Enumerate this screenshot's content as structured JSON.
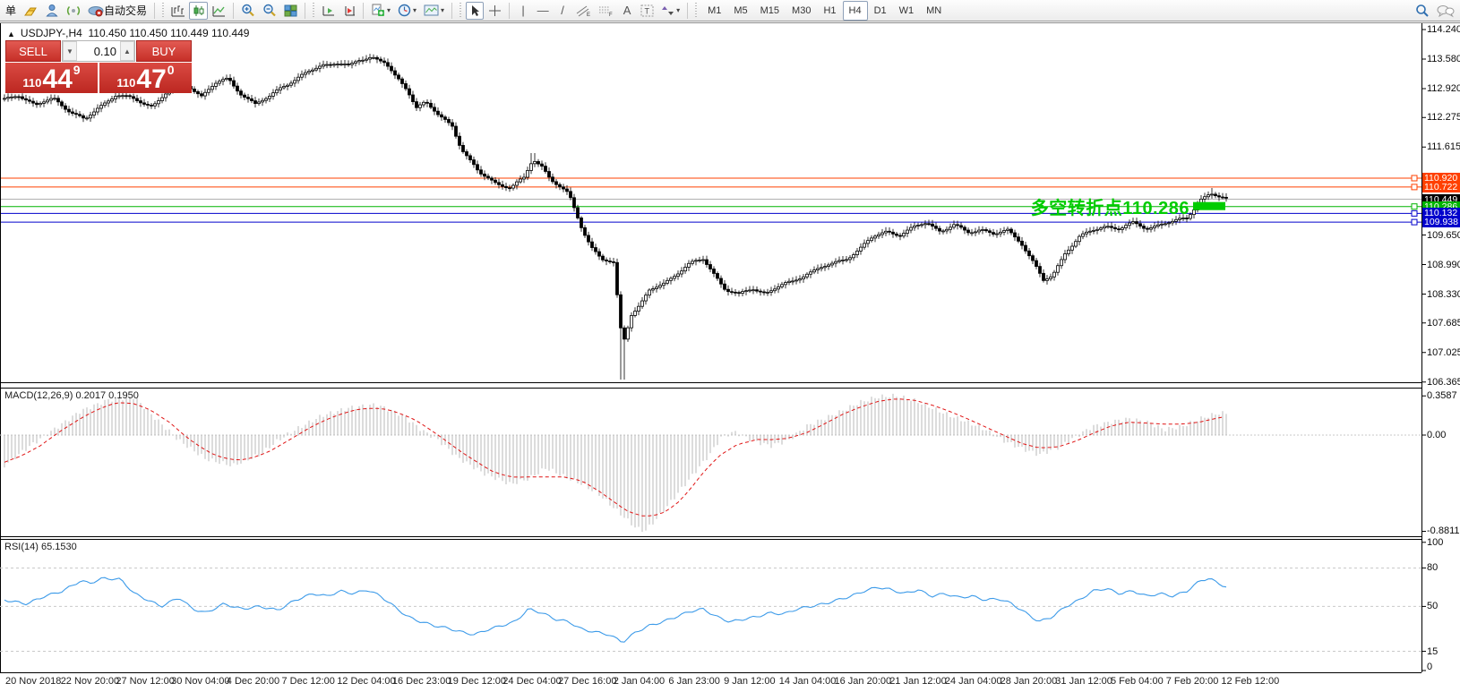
{
  "toolbar": {
    "new_order_label": "单",
    "autotrading_label": "自动交易",
    "timeframes": [
      "M1",
      "M5",
      "M15",
      "M30",
      "H1",
      "H4",
      "D1",
      "W1",
      "MN"
    ],
    "active_timeframe": "H4",
    "glyphs": {
      "vertical_line": "|",
      "horizontal_line": "—",
      "trendline": "/",
      "text": "A",
      "text_label": "T"
    }
  },
  "chart": {
    "header": {
      "collapse_arrow": "▲",
      "symbol_period": "USDJPY-,H4",
      "ohlc": "110.450 110.450 110.449 110.449"
    },
    "trade_panel": {
      "sell_label": "SELL",
      "buy_label": "BUY",
      "volume": "0.10",
      "sell_prefix": "110",
      "sell_big": "44",
      "sell_sup": "9",
      "buy_prefix": "110",
      "buy_big": "47",
      "buy_sup": "0",
      "spin_down": "▼",
      "spin_up": "▲"
    },
    "annotation": {
      "text": "多空转折点110.286",
      "color": "#00cc00"
    },
    "price_axis_ticks": [
      "114.240",
      "113.580",
      "112.920",
      "112.275",
      "111.615",
      "109.650",
      "108.990",
      "108.330",
      "107.685",
      "107.025",
      "106.365"
    ]
  },
  "chart_data": [
    {
      "type": "candlestick",
      "title": "USDJPY-,H4",
      "ylim": [
        106.365,
        114.24
      ],
      "price_anchors": [
        [
          5,
          112.66
        ],
        [
          20,
          112.8
        ],
        [
          40,
          112.54
        ],
        [
          60,
          112.7
        ],
        [
          80,
          112.4
        ],
        [
          95,
          112.2
        ],
        [
          110,
          112.5
        ],
        [
          130,
          112.8
        ],
        [
          150,
          112.66
        ],
        [
          170,
          112.54
        ],
        [
          190,
          112.9
        ],
        [
          210,
          113.0
        ],
        [
          225,
          112.76
        ],
        [
          240,
          113.02
        ],
        [
          255,
          113.14
        ],
        [
          270,
          112.8
        ],
        [
          285,
          112.56
        ],
        [
          300,
          112.72
        ],
        [
          315,
          113.0
        ],
        [
          330,
          113.1
        ],
        [
          345,
          113.3
        ],
        [
          360,
          113.46
        ],
        [
          375,
          113.5
        ],
        [
          390,
          113.4
        ],
        [
          400,
          113.56
        ],
        [
          415,
          113.64
        ],
        [
          430,
          113.5
        ],
        [
          440,
          113.2
        ],
        [
          455,
          112.9
        ],
        [
          465,
          112.52
        ],
        [
          475,
          112.62
        ],
        [
          490,
          112.3
        ],
        [
          505,
          112.1
        ],
        [
          515,
          111.6
        ],
        [
          525,
          111.3
        ],
        [
          535,
          111.02
        ],
        [
          545,
          110.92
        ],
        [
          555,
          110.8
        ],
        [
          570,
          110.72
        ],
        [
          585,
          110.9
        ],
        [
          595,
          111.34
        ],
        [
          605,
          111.2
        ],
        [
          615,
          110.9
        ],
        [
          625,
          110.72
        ],
        [
          635,
          110.54
        ],
        [
          650,
          109.8
        ],
        [
          660,
          109.4
        ],
        [
          672,
          109.1
        ],
        [
          685,
          109.0
        ],
        [
          695,
          107.2
        ],
        [
          705,
          107.9
        ],
        [
          715,
          108.1
        ],
        [
          725,
          108.4
        ],
        [
          740,
          108.54
        ],
        [
          755,
          108.8
        ],
        [
          770,
          109.0
        ],
        [
          785,
          109.1
        ],
        [
          800,
          108.72
        ],
        [
          810,
          108.44
        ],
        [
          825,
          108.3
        ],
        [
          840,
          108.46
        ],
        [
          855,
          108.36
        ],
        [
          870,
          108.5
        ],
        [
          885,
          108.6
        ],
        [
          900,
          108.8
        ],
        [
          915,
          108.9
        ],
        [
          930,
          109.0
        ],
        [
          945,
          109.14
        ],
        [
          960,
          109.34
        ],
        [
          975,
          109.6
        ],
        [
          990,
          109.74
        ],
        [
          1005,
          109.66
        ],
        [
          1020,
          109.8
        ],
        [
          1035,
          109.94
        ],
        [
          1050,
          109.74
        ],
        [
          1065,
          109.86
        ],
        [
          1080,
          109.7
        ],
        [
          1095,
          109.8
        ],
        [
          1110,
          109.66
        ],
        [
          1125,
          109.74
        ],
        [
          1140,
          109.5
        ],
        [
          1155,
          109.0
        ],
        [
          1165,
          108.62
        ],
        [
          1175,
          108.72
        ],
        [
          1190,
          109.3
        ],
        [
          1205,
          109.6
        ],
        [
          1220,
          109.74
        ],
        [
          1235,
          109.86
        ],
        [
          1250,
          109.8
        ],
        [
          1265,
          109.9
        ],
        [
          1280,
          109.8
        ],
        [
          1295,
          109.9
        ],
        [
          1310,
          109.94
        ],
        [
          1325,
          110.02
        ],
        [
          1340,
          110.46
        ],
        [
          1352,
          110.56
        ],
        [
          1362,
          110.48
        ],
        [
          1370,
          110.45
        ]
      ],
      "spikes": [
        {
          "x": 695,
          "low": 106.42
        },
        {
          "x": 595,
          "high": 111.48
        },
        {
          "x": 1352,
          "high": 110.7
        }
      ],
      "horizontal_lines": [
        {
          "price": 110.92,
          "label": "110.920",
          "color": "#ff4000",
          "label_bg": "#ff4000",
          "label_fg": "#ffffff"
        },
        {
          "price": 110.722,
          "label": "110.722",
          "color": "#ff4000",
          "label_bg": "#ff4000",
          "label_fg": "#ffffff"
        },
        {
          "price": 110.286,
          "label": "110.286",
          "color": "#00b400",
          "label_bg": "#00b400",
          "label_fg": "#ffffff"
        },
        {
          "price": 110.132,
          "label": "110.132",
          "color": "#0000cc",
          "label_bg": "#0000cc",
          "label_fg": "#ffffff"
        },
        {
          "price": 109.938,
          "label": "109.938",
          "color": "#0000cc",
          "label_bg": "#0000cc",
          "label_fg": "#ffffff"
        }
      ],
      "current_price": {
        "price": 110.449,
        "label": "110.449",
        "line_color": "#b0b0b0",
        "label_bg": "#000000",
        "label_fg": "#ffffff"
      },
      "green_box": {
        "x": 1332,
        "width": 36,
        "price": 110.286,
        "color": "#00cc00"
      }
    },
    {
      "type": "bar",
      "name": "MACD(12,26,9)",
      "values_label": "0.2017 0.1950",
      "ylim": [
        -0.8811,
        0.3587
      ],
      "axis_ticks": [
        "0.3587",
        "0.00",
        "-0.8811"
      ],
      "histogram_color": "#b8b8b8",
      "signal_color": "#e01515",
      "anchors": [
        [
          5,
          -0.28
        ],
        [
          30,
          -0.12
        ],
        [
          60,
          0.05
        ],
        [
          90,
          0.22
        ],
        [
          120,
          0.32
        ],
        [
          150,
          0.35
        ],
        [
          170,
          0.18
        ],
        [
          200,
          -0.05
        ],
        [
          230,
          -0.22
        ],
        [
          260,
          -0.28
        ],
        [
          290,
          -0.18
        ],
        [
          310,
          -0.05
        ],
        [
          330,
          0.05
        ],
        [
          360,
          0.18
        ],
        [
          390,
          0.25
        ],
        [
          420,
          0.28
        ],
        [
          450,
          0.18
        ],
        [
          470,
          0.05
        ],
        [
          490,
          -0.05
        ],
        [
          510,
          -0.2
        ],
        [
          540,
          -0.35
        ],
        [
          570,
          -0.45
        ],
        [
          590,
          -0.4
        ],
        [
          610,
          -0.3
        ],
        [
          630,
          -0.38
        ],
        [
          650,
          -0.45
        ],
        [
          670,
          -0.55
        ],
        [
          690,
          -0.7
        ],
        [
          710,
          -0.85
        ],
        [
          720,
          -0.88
        ],
        [
          735,
          -0.75
        ],
        [
          755,
          -0.55
        ],
        [
          775,
          -0.35
        ],
        [
          795,
          -0.15
        ],
        [
          805,
          -0.02
        ],
        [
          820,
          0.03
        ],
        [
          840,
          -0.05
        ],
        [
          860,
          -0.1
        ],
        [
          880,
          -0.05
        ],
        [
          900,
          0.08
        ],
        [
          920,
          0.15
        ],
        [
          940,
          0.22
        ],
        [
          960,
          0.3
        ],
        [
          980,
          0.35
        ],
        [
          1000,
          0.36
        ],
        [
          1020,
          0.32
        ],
        [
          1040,
          0.25
        ],
        [
          1060,
          0.18
        ],
        [
          1080,
          0.12
        ],
        [
          1100,
          0.05
        ],
        [
          1120,
          -0.05
        ],
        [
          1140,
          -0.12
        ],
        [
          1160,
          -0.18
        ],
        [
          1180,
          -0.12
        ],
        [
          1200,
          -0.02
        ],
        [
          1220,
          0.08
        ],
        [
          1240,
          0.12
        ],
        [
          1260,
          0.15
        ],
        [
          1280,
          0.12
        ],
        [
          1300,
          0.05
        ],
        [
          1320,
          0.08
        ],
        [
          1340,
          0.15
        ],
        [
          1360,
          0.2
        ],
        [
          1370,
          0.2
        ]
      ]
    },
    {
      "type": "line",
      "name": "RSI(14)",
      "value_label": "65.1530",
      "ylim": [
        0,
        100
      ],
      "levels": [
        "100",
        "80",
        "50",
        "15",
        "0"
      ],
      "dashed_levels": [
        80,
        50,
        15
      ],
      "line_color": "#3d9be9",
      "anchors": [
        [
          5,
          55
        ],
        [
          30,
          52
        ],
        [
          50,
          58
        ],
        [
          70,
          62
        ],
        [
          90,
          70
        ],
        [
          100,
          68
        ],
        [
          115,
          72
        ],
        [
          135,
          71
        ],
        [
          150,
          60
        ],
        [
          165,
          55
        ],
        [
          180,
          50
        ],
        [
          200,
          57
        ],
        [
          215,
          48
        ],
        [
          230,
          45
        ],
        [
          250,
          52
        ],
        [
          270,
          48
        ],
        [
          290,
          50
        ],
        [
          310,
          47
        ],
        [
          330,
          55
        ],
        [
          350,
          60
        ],
        [
          365,
          58
        ],
        [
          380,
          62
        ],
        [
          395,
          60
        ],
        [
          410,
          63
        ],
        [
          425,
          58
        ],
        [
          440,
          50
        ],
        [
          455,
          42
        ],
        [
          470,
          38
        ],
        [
          485,
          35
        ],
        [
          500,
          33
        ],
        [
          515,
          30
        ],
        [
          530,
          28
        ],
        [
          545,
          32
        ],
        [
          560,
          35
        ],
        [
          575,
          38
        ],
        [
          590,
          48
        ],
        [
          605,
          45
        ],
        [
          620,
          40
        ],
        [
          635,
          38
        ],
        [
          650,
          32
        ],
        [
          665,
          30
        ],
        [
          680,
          28
        ],
        [
          695,
          22
        ],
        [
          710,
          30
        ],
        [
          725,
          35
        ],
        [
          740,
          38
        ],
        [
          755,
          42
        ],
        [
          770,
          46
        ],
        [
          785,
          48
        ],
        [
          800,
          42
        ],
        [
          815,
          38
        ],
        [
          830,
          40
        ],
        [
          845,
          42
        ],
        [
          860,
          45
        ],
        [
          875,
          44
        ],
        [
          890,
          48
        ],
        [
          905,
          50
        ],
        [
          920,
          52
        ],
        [
          935,
          55
        ],
        [
          950,
          58
        ],
        [
          965,
          62
        ],
        [
          980,
          65
        ],
        [
          995,
          63
        ],
        [
          1010,
          60
        ],
        [
          1025,
          63
        ],
        [
          1040,
          58
        ],
        [
          1055,
          60
        ],
        [
          1070,
          57
        ],
        [
          1085,
          58
        ],
        [
          1100,
          55
        ],
        [
          1115,
          56
        ],
        [
          1130,
          52
        ],
        [
          1145,
          45
        ],
        [
          1160,
          38
        ],
        [
          1175,
          42
        ],
        [
          1190,
          50
        ],
        [
          1205,
          55
        ],
        [
          1220,
          62
        ],
        [
          1235,
          64
        ],
        [
          1250,
          60
        ],
        [
          1265,
          62
        ],
        [
          1280,
          58
        ],
        [
          1295,
          60
        ],
        [
          1310,
          58
        ],
        [
          1325,
          62
        ],
        [
          1340,
          70
        ],
        [
          1350,
          72
        ],
        [
          1360,
          68
        ],
        [
          1370,
          65
        ]
      ]
    }
  ],
  "time_axis": {
    "labels": [
      "20 Nov 2018",
      "22 Nov 20:00",
      "27 Nov 12:00",
      "30 Nov 04:00",
      "4 Dec 20:00",
      "7 Dec 12:00",
      "12 Dec 04:00",
      "16 Dec 23:00",
      "19 Dec 12:00",
      "24 Dec 04:00",
      "27 Dec 16:00",
      "2 Jan 04:00",
      "6 Jan 23:00",
      "9 Jan 12:00",
      "14 Jan 04:00",
      "16 Jan 20:00",
      "21 Jan 12:00",
      "24 Jan 04:00",
      "28 Jan 20:00",
      "31 Jan 12:00",
      "5 Feb 04:00",
      "7 Feb 20:00",
      "12 Feb 12:00"
    ]
  }
}
